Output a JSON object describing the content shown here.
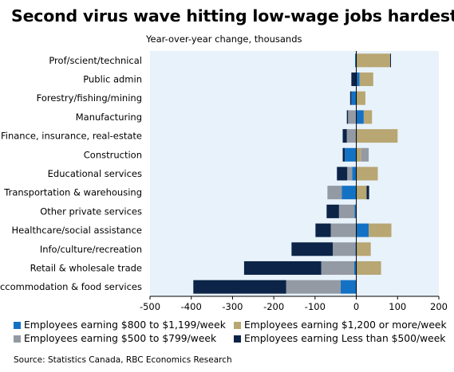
{
  "title": "Second virus wave hitting low-wage jobs hardest",
  "subtitle": "Year-over-year change, thousands",
  "source": "Source: Statistics Canada, RBC Economics Research",
  "chart_data": {
    "type": "bar",
    "orientation": "horizontal",
    "stacked": true,
    "categories": [
      "Prof/scient/technical",
      "Public admin",
      "Forestry/fishing/mining",
      "Manufacturing",
      "Finance, insurance, real-estate",
      "Construction",
      "Educational services",
      "Transportation & warehousing",
      "Other private services",
      "Healthcare/social assistance",
      "Info/culture/recreation",
      "Retail & wholesale trade",
      "Accommodation & food services"
    ],
    "series": [
      {
        "name": "Employees earning $800 to $1,199/week",
        "color": "#1472c4",
        "values": [
          -3,
          8,
          -12,
          18,
          -1,
          -28,
          -10,
          -35,
          -4,
          30,
          -2,
          -5,
          -38
        ]
      },
      {
        "name": "Employees earning $1,200 or more/week",
        "color": "#b8a673",
        "values": [
          82,
          33,
          22,
          20,
          100,
          12,
          52,
          25,
          0,
          55,
          35,
          60,
          0
        ]
      },
      {
        "name": "Employees earning $500 to $799/week",
        "color": "#939aa3",
        "values": [
          0,
          0,
          0,
          -20,
          -22,
          18,
          -12,
          -35,
          -38,
          -62,
          -55,
          -80,
          -132
        ]
      },
      {
        "name": "Employees earning Less than $500/week",
        "color": "#0b2447",
        "values": [
          2,
          -12,
          -3,
          -3,
          -10,
          -5,
          -25,
          6,
          -30,
          -37,
          -100,
          -187,
          -225
        ]
      }
    ],
    "xlim": [
      -500,
      200
    ],
    "xticks": [
      "-500",
      "-400",
      "-300",
      "-200",
      "-100",
      "0",
      "100",
      "200"
    ],
    "plot_background": "#e8f2fb",
    "grid": false,
    "legend_position": "bottom"
  }
}
